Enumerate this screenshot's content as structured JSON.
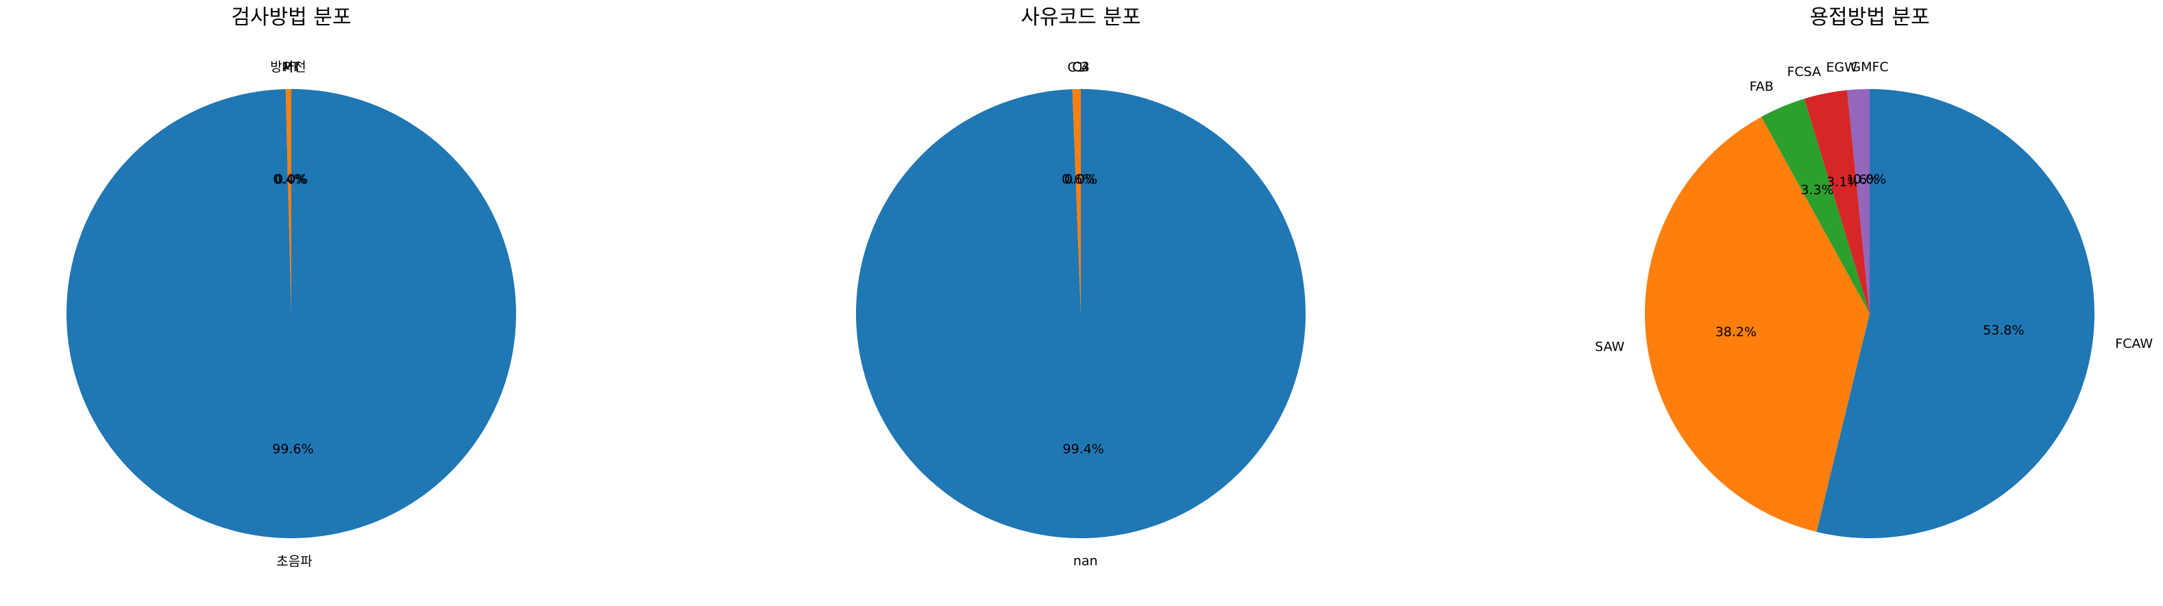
{
  "chart_data": [
    {
      "type": "pie",
      "title": "검사방법 분포",
      "slices": [
        {
          "label": "초음파",
          "value": 99.6,
          "color": "#1f77b4"
        },
        {
          "label": "방사선",
          "value": 0.4,
          "color": "#ff7f0e"
        },
        {
          "label": "MT",
          "value": 0.0,
          "color": "#2ca02c"
        },
        {
          "label": "PT",
          "value": 0.0,
          "color": "#d62728"
        }
      ],
      "pct_labels": [
        "99.6%",
        "0.4%",
        "0.0%",
        "0.0%"
      ],
      "start_angle_deg": 90,
      "direction": "clockwise"
    },
    {
      "type": "pie",
      "title": "사유코드 분포",
      "slices": [
        {
          "label": "nan",
          "value": 99.4,
          "color": "#1f77b4"
        },
        {
          "label": "C1",
          "value": 0.6,
          "color": "#ff7f0e"
        },
        {
          "label": "C2",
          "value": 0.0,
          "color": "#2ca02c"
        },
        {
          "label": "C3",
          "value": 0.0,
          "color": "#d62728"
        },
        {
          "label": "C4",
          "value": 0.0,
          "color": "#9467bd"
        }
      ],
      "pct_labels": [
        "99.4%",
        "0.6%",
        "0.0%",
        "0.0%",
        "0.0%"
      ],
      "start_angle_deg": 90,
      "direction": "clockwise"
    },
    {
      "type": "pie",
      "title": "용접방법 분포",
      "slices": [
        {
          "label": "FCAW",
          "value": 53.8,
          "color": "#1f77b4"
        },
        {
          "label": "SAW",
          "value": 38.2,
          "color": "#ff7f0e"
        },
        {
          "label": "FAB",
          "value": 3.3,
          "color": "#2ca02c"
        },
        {
          "label": "FCSA",
          "value": 3.1,
          "color": "#d62728"
        },
        {
          "label": "EGW",
          "value": 1.6,
          "color": "#9467bd"
        },
        {
          "label": "GMFC",
          "value": 0.0,
          "color": "#8c564b"
        }
      ],
      "pct_labels": [
        "53.8%",
        "38.2%",
        "3.3%",
        "3.1%",
        "1.6%",
        "0.0%"
      ],
      "start_angle_deg": 90,
      "direction": "clockwise"
    }
  ]
}
